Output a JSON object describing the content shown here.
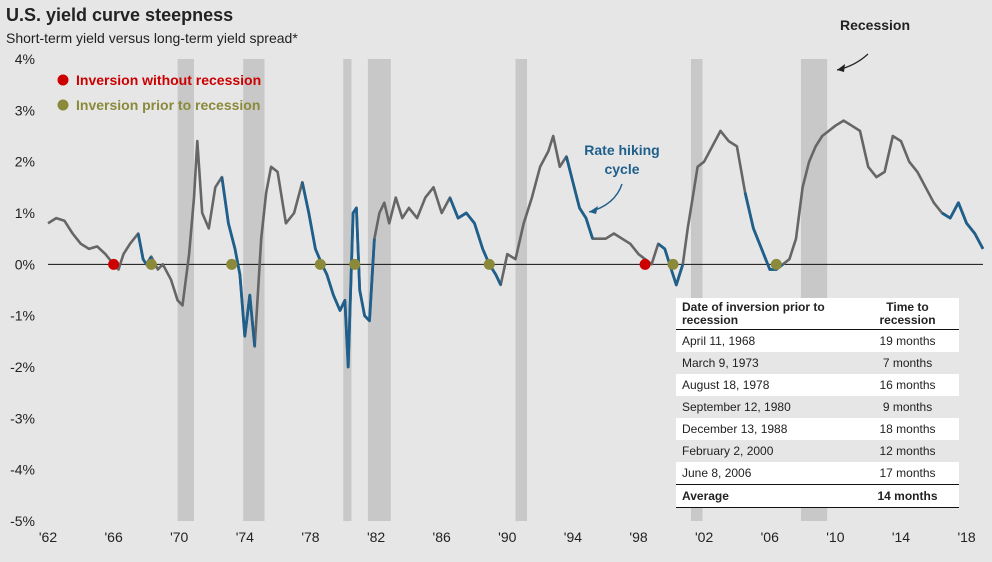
{
  "chart_data": {
    "type": "line",
    "title": "U.S. yield curve steepness",
    "subtitle": "Short-term yield versus long-term yield spread*",
    "xlabel": "",
    "ylabel": "",
    "xlim": [
      1962,
      2019
    ],
    "ylim": [
      -5,
      4
    ],
    "y_ticks": [
      "4%",
      "3%",
      "2%",
      "1%",
      "0%",
      "-1%",
      "-2%",
      "-3%",
      "-4%",
      "-5%"
    ],
    "x_ticks": [
      "'62",
      "'66",
      "'70",
      "'74",
      "'78",
      "'82",
      "'86",
      "'90",
      "'94",
      "'98",
      "'02",
      "'06",
      "'10",
      "'14",
      "'18"
    ],
    "series": [
      {
        "name": "Yield spread",
        "x": [
          1962.0,
          1962.5,
          1963.0,
          1963.5,
          1964.0,
          1964.5,
          1965.0,
          1965.5,
          1966.0,
          1966.3,
          1966.6,
          1967.0,
          1967.5,
          1967.8,
          1968.0,
          1968.3,
          1968.7,
          1969.0,
          1969.5,
          1969.9,
          1970.2,
          1970.6,
          1970.9,
          1971.1,
          1971.4,
          1971.8,
          1972.2,
          1972.6,
          1973.0,
          1973.4,
          1973.7,
          1974.0,
          1974.3,
          1974.6,
          1975.0,
          1975.3,
          1975.6,
          1976.0,
          1976.5,
          1977.0,
          1977.5,
          1977.9,
          1978.3,
          1978.7,
          1979.0,
          1979.4,
          1979.8,
          1980.1,
          1980.3,
          1980.6,
          1980.8,
          1981.0,
          1981.3,
          1981.6,
          1981.9,
          1982.2,
          1982.5,
          1982.8,
          1983.2,
          1983.6,
          1984.0,
          1984.5,
          1985.0,
          1985.5,
          1986.0,
          1986.5,
          1987.0,
          1987.5,
          1988.0,
          1988.5,
          1988.9,
          1989.3,
          1989.6,
          1990.0,
          1990.5,
          1991.0,
          1991.5,
          1992.0,
          1992.5,
          1992.8,
          1993.2,
          1993.6,
          1994.0,
          1994.4,
          1994.8,
          1995.2,
          1995.6,
          1996.0,
          1996.5,
          1997.0,
          1997.5,
          1998.0,
          1998.4,
          1998.8,
          1999.2,
          1999.6,
          2000.0,
          2000.3,
          2000.7,
          2001.0,
          2001.3,
          2001.6,
          2002.0,
          2002.5,
          2003.0,
          2003.5,
          2004.0,
          2004.5,
          2005.0,
          2005.5,
          2006.0,
          2006.4,
          2006.8,
          2007.2,
          2007.6,
          2008.0,
          2008.4,
          2008.8,
          2009.2,
          2009.6,
          2010.0,
          2010.5,
          2011.0,
          2011.5,
          2012.0,
          2012.5,
          2013.0,
          2013.5,
          2014.0,
          2014.5,
          2015.0,
          2015.5,
          2016.0,
          2016.5,
          2017.0,
          2017.5,
          2018.0,
          2018.5,
          2019.0
        ],
        "y": [
          0.8,
          0.9,
          0.85,
          0.6,
          0.4,
          0.3,
          0.35,
          0.2,
          0.0,
          -0.1,
          0.2,
          0.4,
          0.6,
          0.1,
          0.0,
          0.15,
          -0.1,
          0.0,
          -0.3,
          -0.7,
          -0.8,
          0.2,
          1.3,
          2.4,
          1.0,
          0.7,
          1.5,
          1.7,
          0.8,
          0.3,
          -0.2,
          -1.4,
          -0.6,
          -1.6,
          0.5,
          1.4,
          1.9,
          1.8,
          0.8,
          1.0,
          1.6,
          1.0,
          0.3,
          0.0,
          -0.2,
          -0.6,
          -0.9,
          -0.7,
          -2.0,
          1.0,
          1.1,
          -0.5,
          -1.0,
          -1.1,
          0.5,
          1.0,
          1.2,
          0.8,
          1.3,
          0.9,
          1.1,
          0.9,
          1.3,
          1.5,
          1.0,
          1.3,
          0.9,
          1.0,
          0.8,
          0.3,
          0.0,
          -0.2,
          -0.4,
          0.2,
          0.1,
          0.8,
          1.3,
          1.9,
          2.2,
          2.5,
          1.9,
          2.1,
          1.6,
          1.1,
          0.9,
          0.5,
          0.5,
          0.5,
          0.6,
          0.5,
          0.4,
          0.2,
          0.1,
          0.0,
          0.4,
          0.3,
          -0.1,
          -0.4,
          0.0,
          0.7,
          1.3,
          1.9,
          2.0,
          2.3,
          2.6,
          2.4,
          2.3,
          1.4,
          0.7,
          0.3,
          -0.1,
          -0.1,
          0.0,
          0.1,
          0.5,
          1.5,
          2.0,
          2.3,
          2.5,
          2.6,
          2.7,
          2.8,
          2.7,
          2.6,
          1.9,
          1.7,
          1.8,
          2.5,
          2.4,
          2.0,
          1.8,
          1.5,
          1.2,
          1.0,
          0.9,
          1.2,
          0.8,
          0.6,
          0.3
        ]
      }
    ],
    "recessions": [
      [
        1969.9,
        1970.9
      ],
      [
        1973.9,
        1975.2
      ],
      [
        1980.0,
        1980.5
      ],
      [
        1981.5,
        1982.9
      ],
      [
        1990.5,
        1991.2
      ],
      [
        2001.2,
        2001.9
      ],
      [
        2007.9,
        2009.5
      ]
    ],
    "inversion_markers": [
      {
        "name": "Inversion without recession",
        "x": [
          1966.0,
          1998.4
        ],
        "color": "#cc0000"
      },
      {
        "name": "Inversion prior to recession",
        "x": [
          1968.3,
          1973.2,
          1978.6,
          1980.7,
          1988.9,
          2000.1,
          2006.4
        ],
        "color": "#8a8a3a"
      }
    ],
    "legend": {
      "placement": "top-left",
      "items": [
        {
          "label": "Inversion without recession",
          "color": "#cc0000"
        },
        {
          "label": "Inversion prior to recession",
          "color": "#8a8a3a"
        }
      ]
    },
    "annotations": [
      {
        "text": "Recession"
      },
      {
        "text": "Rate hiking\ncycle"
      }
    ],
    "colors": {
      "line": "#666666",
      "hiking": "#1f5f8b",
      "recession": "#c8c8c8",
      "background": "#e6e6e6"
    },
    "grid": false
  },
  "table": {
    "header_col1": "Date of inversion prior to recession",
    "header_col2": "Time to recession",
    "rows": [
      {
        "date": "April 11, 1968",
        "time": "19 months"
      },
      {
        "date": "March 9, 1973",
        "time": "7 months"
      },
      {
        "date": "August 18, 1978",
        "time": "16 months"
      },
      {
        "date": "September 12, 1980",
        "time": "9 months"
      },
      {
        "date": "December 13, 1988",
        "time": "18 months"
      },
      {
        "date": "February 2, 2000",
        "time": "12 months"
      },
      {
        "date": "June 8, 2006",
        "time": "17 months"
      }
    ],
    "average_label": "Average",
    "average_value": "14 months"
  }
}
